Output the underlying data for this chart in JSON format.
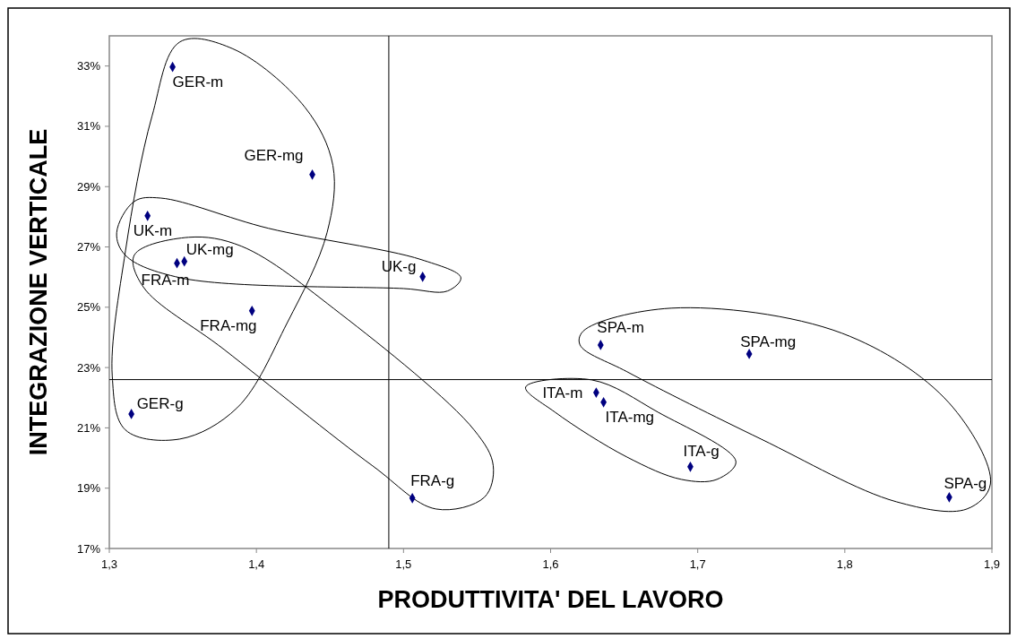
{
  "chart_data": {
    "type": "scatter",
    "xlabel": "PRODUTTIVITA' DEL LAVORO",
    "ylabel": "INTEGRAZIONE VERTICALE",
    "x": [
      1.343,
      1.438,
      1.326,
      1.351,
      1.346,
      1.513,
      1.397,
      1.315,
      1.506,
      1.634,
      1.735,
      1.871,
      1.631,
      1.636,
      1.695
    ],
    "series": [
      {
        "color": "#000080",
        "values": [
          32.97,
          29.4,
          28.03,
          26.52,
          26.46,
          26.01,
          24.88,
          21.46,
          18.67,
          23.75,
          23.45,
          18.7,
          22.17,
          21.85,
          19.71
        ]
      }
    ],
    "annotations": [
      {
        "text": "GER-m",
        "x": 1.343,
        "y": 32.97
      },
      {
        "text": "GER-mg",
        "x": 1.438,
        "y": 29.4
      },
      {
        "text": "UK-m",
        "x": 1.326,
        "y": 28.03
      },
      {
        "text": "UK-mg",
        "x": 1.351,
        "y": 26.52
      },
      {
        "text": "FRA-m",
        "x": 1.346,
        "y": 26.46
      },
      {
        "text": "UK-g",
        "x": 1.513,
        "y": 26.01
      },
      {
        "text": "FRA-mg",
        "x": 1.397,
        "y": 24.88
      },
      {
        "text": "GER-g",
        "x": 1.315,
        "y": 21.46
      },
      {
        "text": "FRA-g",
        "x": 1.506,
        "y": 18.67
      },
      {
        "text": "SPA-m",
        "x": 1.634,
        "y": 23.75
      },
      {
        "text": "SPA-mg",
        "x": 1.735,
        "y": 23.45
      },
      {
        "text": "SPA-g",
        "x": 1.871,
        "y": 18.7
      },
      {
        "text": "ITA-m",
        "x": 1.631,
        "y": 22.17
      },
      {
        "text": "ITA-mg",
        "x": 1.636,
        "y": 21.85
      },
      {
        "text": "ITA-g",
        "x": 1.695,
        "y": 19.71
      }
    ],
    "xlim": [
      1.3,
      1.9
    ],
    "xticks": [
      {
        "value": 1.3,
        "label": "1,3"
      },
      {
        "value": 1.4,
        "label": "1,4"
      },
      {
        "value": 1.5,
        "label": "1,5"
      },
      {
        "value": 1.6,
        "label": "1,6"
      },
      {
        "value": 1.7,
        "label": "1,7"
      },
      {
        "value": 1.8,
        "label": "1,8"
      },
      {
        "value": 1.9,
        "label": "1,9"
      }
    ],
    "ylim": [
      17,
      34
    ],
    "yticks": [
      {
        "value": 17,
        "label": "17%"
      },
      {
        "value": 19,
        "label": "19%"
      },
      {
        "value": 21,
        "label": "21%"
      },
      {
        "value": 23,
        "label": "23%"
      },
      {
        "value": 25,
        "label": "25%"
      },
      {
        "value": 27,
        "label": "27%"
      },
      {
        "value": 29,
        "label": "29%"
      },
      {
        "value": 31,
        "label": "31%"
      },
      {
        "value": 33,
        "label": "33%"
      }
    ],
    "ref_lines": [
      {
        "axis": "x",
        "value": 1.49,
        "color": "#000000"
      },
      {
        "axis": "y",
        "value": 22.6,
        "color": "#000000"
      }
    ],
    "grid": false,
    "marker": "diamond"
  }
}
